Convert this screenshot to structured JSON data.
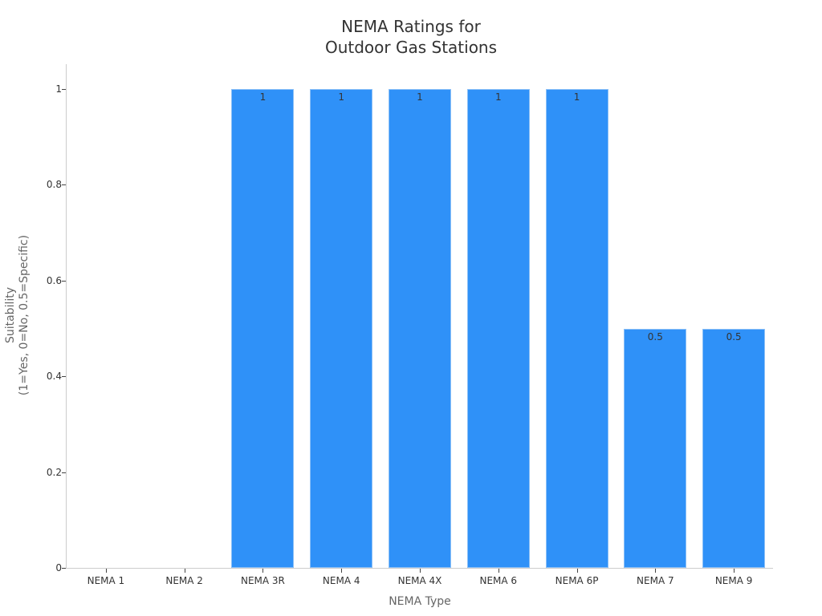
{
  "chart_data": {
    "type": "bar",
    "title": "NEMA Ratings for\nOutdoor Gas Stations",
    "title_lines": [
      "NEMA Ratings for",
      "Outdoor Gas Stations"
    ],
    "xlabel": "NEMA Type",
    "ylabel": "Suitability\n(1=Yes, 0=No, 0.5=Specific)",
    "ylabel_lines": [
      "Suitability",
      "(1=Yes, 0=No, 0.5=Specific)"
    ],
    "categories": [
      "NEMA 1",
      "NEMA 2",
      "NEMA 3R",
      "NEMA 4",
      "NEMA 4X",
      "NEMA 6",
      "NEMA 6P",
      "NEMA 7",
      "NEMA 9"
    ],
    "values": [
      0,
      0,
      1,
      1,
      1,
      1,
      1,
      0.5,
      0.5
    ],
    "data_labels": [
      "",
      "",
      "1",
      "1",
      "1",
      "1",
      "1",
      "0.5",
      "0.5"
    ],
    "ylim": [
      0,
      1.055
    ],
    "yticks": [
      0,
      0.2,
      0.4,
      0.6,
      0.8,
      1
    ],
    "ytick_labels": [
      "0",
      "0.2",
      "0.4",
      "0.6",
      "0.8",
      "1"
    ],
    "grid": false,
    "legend": null,
    "bar_color": "#2f91f8"
  }
}
